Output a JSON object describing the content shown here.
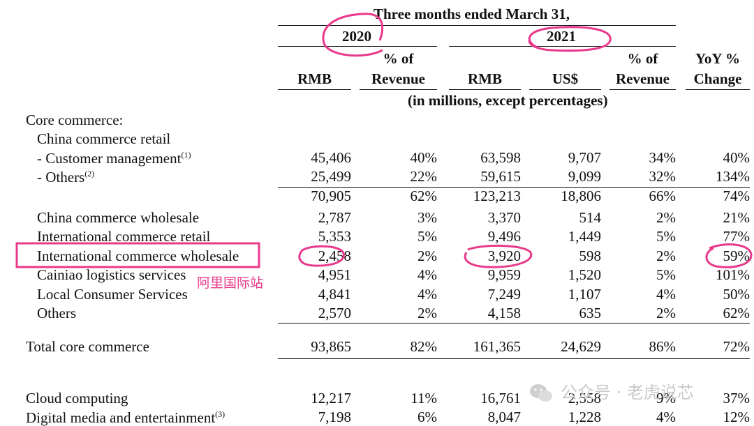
{
  "header": {
    "period": "Three months ended March 31,",
    "year1": "2020",
    "year2": "2021",
    "col_rmb": "RMB",
    "col_pct_line1": "% of",
    "col_pct_line2": "Revenue",
    "col_usd": "US$",
    "col_yoy_line1": "YoY %",
    "col_yoy_line2": "Change",
    "unit_note": "(in millions, except percentages)"
  },
  "sections": {
    "core": "Core commerce:",
    "china_retail": "China commerce retail"
  },
  "rows": [
    {
      "label": "- Customer management",
      "sup": "(1)",
      "v": [
        "45,406",
        "40%",
        "63,598",
        "9,707",
        "34%",
        "40%"
      ]
    },
    {
      "label": "- Others",
      "sup": "(2)",
      "v": [
        "25,499",
        "22%",
        "59,615",
        "9,099",
        "32%",
        "134%"
      ]
    },
    {
      "label": "",
      "sup": "",
      "v": [
        "70,905",
        "62%",
        "123,213",
        "18,806",
        "66%",
        "74%"
      ]
    },
    {
      "label": "China commerce wholesale",
      "sup": "",
      "v": [
        "2,787",
        "3%",
        "3,370",
        "514",
        "2%",
        "21%"
      ]
    },
    {
      "label": "International commerce retail",
      "sup": "",
      "v": [
        "5,353",
        "5%",
        "9,496",
        "1,449",
        "5%",
        "77%"
      ]
    },
    {
      "label": "International commerce wholesale",
      "sup": "",
      "v": [
        "2,458",
        "2%",
        "3,920",
        "598",
        "2%",
        "59%"
      ]
    },
    {
      "label": "Cainiao logistics services",
      "sup": "",
      "v": [
        "4,951",
        "4%",
        "9,959",
        "1,520",
        "5%",
        "101%"
      ]
    },
    {
      "label": "Local Consumer Services",
      "sup": "",
      "v": [
        "4,841",
        "4%",
        "7,249",
        "1,107",
        "4%",
        "50%"
      ]
    },
    {
      "label": "Others",
      "sup": "",
      "v": [
        "2,570",
        "2%",
        "4,158",
        "635",
        "2%",
        "62%"
      ]
    },
    {
      "label": "Total core commerce",
      "sup": "",
      "v": [
        "93,865",
        "82%",
        "161,365",
        "24,629",
        "86%",
        "72%"
      ]
    },
    {
      "label": "Cloud computing",
      "sup": "",
      "v": [
        "12,217",
        "11%",
        "16,761",
        "2,558",
        "9%",
        "37%"
      ]
    },
    {
      "label": "Digital media and entertainment",
      "sup": "(3)",
      "v": [
        "7,198",
        "6%",
        "8,047",
        "1,228",
        "4%",
        "12%"
      ]
    }
  ],
  "annotation": {
    "note": "阿里国际站",
    "color": "#e8398a"
  },
  "watermark": {
    "text": "公众号 · 老虎说芯",
    "icon": "wechat-icon"
  }
}
